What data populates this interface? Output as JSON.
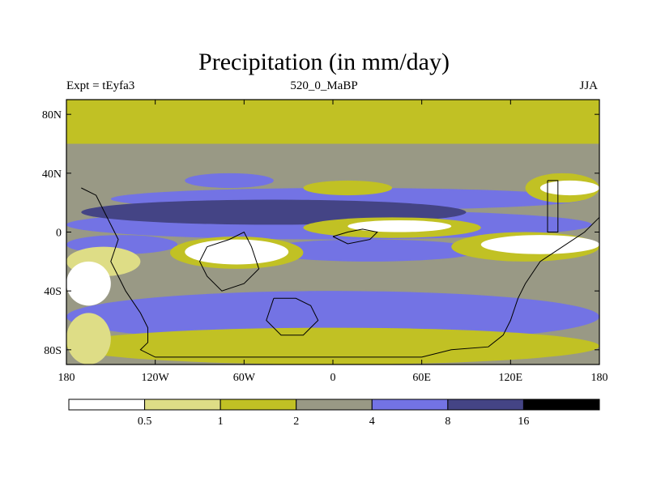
{
  "chart_data": {
    "type": "heatmap",
    "title": "Precipitation (in mm/day)",
    "subtitle_left": "Expt = tEyfa3",
    "subtitle_center": "520_0_MaBP",
    "subtitle_right": "JJA",
    "x_ticks": [
      {
        "value": -180,
        "label": "180"
      },
      {
        "value": -120,
        "label": "120W"
      },
      {
        "value": -60,
        "label": "60W"
      },
      {
        "value": 0,
        "label": "0"
      },
      {
        "value": 60,
        "label": "60E"
      },
      {
        "value": 120,
        "label": "120E"
      },
      {
        "value": 180,
        "label": "180"
      }
    ],
    "y_ticks": [
      {
        "value": 80,
        "label": "80N"
      },
      {
        "value": 40,
        "label": "40N"
      },
      {
        "value": 0,
        "label": "0"
      },
      {
        "value": -40,
        "label": "40S"
      },
      {
        "value": -80,
        "label": "80S"
      }
    ],
    "xlim": [
      -180,
      180
    ],
    "ylim": [
      -90,
      90
    ],
    "colorbar": {
      "levels": [
        0.5,
        1,
        2,
        4,
        8,
        16
      ],
      "level_labels": [
        "0.5",
        "1",
        "2",
        "4",
        "8",
        "16"
      ],
      "colors": [
        "#ffffff",
        "#dedd86",
        "#c1c124",
        "#999985",
        "#7373e4",
        "#444485",
        "#000000"
      ]
    },
    "bands": [
      {
        "lat": [
          60,
          90
        ],
        "class": 2
      },
      {
        "lat": [
          55,
          60
        ],
        "class": 3
      },
      {
        "lat": [
          35,
          55
        ],
        "class": 3
      },
      {
        "lat": [
          -90,
          90
        ],
        "class": 3
      }
    ],
    "blobs": [
      {
        "lon": [
          -150,
          170
        ],
        "lat": [
          15,
          30
        ],
        "class": 4
      },
      {
        "lon": [
          -180,
          175
        ],
        "lat": [
          -5,
          15
        ],
        "class": 4
      },
      {
        "lon": [
          -170,
          90
        ],
        "lat": [
          5,
          22
        ],
        "class": 5
      },
      {
        "lon": [
          -50,
          100
        ],
        "lat": [
          -20,
          -5
        ],
        "class": 4
      },
      {
        "lon": [
          -180,
          -105
        ],
        "lat": [
          -15,
          -2
        ],
        "class": 4
      },
      {
        "lon": [
          -110,
          -20
        ],
        "lat": [
          -25,
          -3
        ],
        "class": 2
      },
      {
        "lon": [
          -100,
          -30
        ],
        "lat": [
          -22,
          -5
        ],
        "class": 0
      },
      {
        "lon": [
          -20,
          100
        ],
        "lat": [
          -4,
          10
        ],
        "class": 2
      },
      {
        "lon": [
          10,
          80
        ],
        "lat": [
          0,
          8
        ],
        "class": 0
      },
      {
        "lon": [
          80,
          180
        ],
        "lat": [
          -20,
          0
        ],
        "class": 2
      },
      {
        "lon": [
          100,
          180
        ],
        "lat": [
          -15,
          -2
        ],
        "class": 0
      },
      {
        "lon": [
          -180,
          -130
        ],
        "lat": [
          -30,
          -10
        ],
        "class": 1
      },
      {
        "lon": [
          -180,
          -150
        ],
        "lat": [
          -50,
          -20
        ],
        "class": 0
      },
      {
        "lon": [
          -180,
          180
        ],
        "lat": [
          -75,
          -40
        ],
        "class": 4
      },
      {
        "lon": [
          -180,
          180
        ],
        "lat": [
          -90,
          -65
        ],
        "class": 2
      },
      {
        "lon": [
          -180,
          -150
        ],
        "lat": [
          -90,
          -55
        ],
        "class": 1
      },
      {
        "lon": [
          130,
          180
        ],
        "lat": [
          20,
          40
        ],
        "class": 2
      },
      {
        "lon": [
          140,
          180
        ],
        "lat": [
          25,
          35
        ],
        "class": 0
      },
      {
        "lon": [
          -20,
          40
        ],
        "lat": [
          25,
          35
        ],
        "class": 2
      },
      {
        "lon": [
          -100,
          -40
        ],
        "lat": [
          30,
          40
        ],
        "class": 4
      }
    ],
    "continent_outlines": [
      [
        [
          -180,
          70
        ],
        [
          -180,
          70
        ]
      ],
      [
        [
          -170,
          30
        ],
        [
          -160,
          25
        ],
        [
          -155,
          15
        ],
        [
          -150,
          5
        ],
        [
          -145,
          -5
        ],
        [
          -150,
          -20
        ],
        [
          -145,
          -30
        ],
        [
          -140,
          -40
        ],
        [
          -130,
          -55
        ],
        [
          -125,
          -65
        ],
        [
          -125,
          -75
        ],
        [
          -130,
          -80
        ],
        [
          -120,
          -85
        ],
        [
          -100,
          -85
        ],
        [
          -60,
          -85
        ],
        [
          -20,
          -85
        ],
        [
          20,
          -85
        ],
        [
          60,
          -85
        ],
        [
          80,
          -80
        ],
        [
          105,
          -78
        ],
        [
          115,
          -70
        ],
        [
          120,
          -60
        ],
        [
          125,
          -45
        ],
        [
          130,
          -35
        ],
        [
          140,
          -20
        ],
        [
          155,
          -10
        ],
        [
          170,
          0
        ],
        [
          180,
          10
        ]
      ],
      [
        [
          -85,
          -10
        ],
        [
          -70,
          -5
        ],
        [
          -60,
          0
        ],
        [
          -55,
          -10
        ],
        [
          -50,
          -25
        ],
        [
          -60,
          -35
        ],
        [
          -75,
          -40
        ],
        [
          -85,
          -30
        ],
        [
          -90,
          -20
        ],
        [
          -85,
          -10
        ]
      ],
      [
        [
          -40,
          -45
        ],
        [
          -25,
          -45
        ],
        [
          -15,
          -50
        ],
        [
          -10,
          -60
        ],
        [
          -20,
          -70
        ],
        [
          -35,
          -70
        ],
        [
          -45,
          -60
        ],
        [
          -40,
          -45
        ]
      ],
      [
        [
          0,
          -3
        ],
        [
          10,
          0
        ],
        [
          20,
          2
        ],
        [
          30,
          0
        ],
        [
          25,
          -5
        ],
        [
          10,
          -8
        ],
        [
          0,
          -3
        ]
      ],
      [
        [
          145,
          35
        ],
        [
          152,
          35
        ],
        [
          152,
          0
        ],
        [
          145,
          0
        ],
        [
          145,
          35
        ]
      ]
    ]
  }
}
